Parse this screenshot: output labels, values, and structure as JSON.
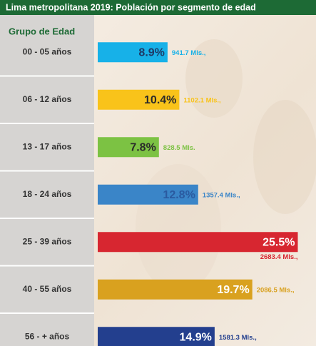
{
  "chart_data": {
    "type": "bar",
    "orientation": "horizontal",
    "title": "Lima metropolitana 2019: Población por segmento de edad",
    "category_header": "Grupo de Edad",
    "categories": [
      "00 - 05 años",
      "06 - 12 años",
      "13 - 17 años",
      "18 - 24 años",
      "25 - 39 años",
      "40 - 55 años",
      "56 - + años"
    ],
    "values": [
      8.9,
      10.4,
      7.8,
      12.8,
      25.5,
      19.7,
      14.9
    ],
    "value_labels": [
      "8.9%",
      "10.4%",
      "7.8%",
      "12.8%",
      "25.5%",
      "19.7%",
      "14.9%"
    ],
    "population_labels": [
      "941.7 Mls.,",
      "1102.1 Mls.,",
      "828.5 Mls.",
      "1357.4 Mls.,",
      "2683.4 Mls.,",
      "2086.5 Mls.,",
      "1581.3 Mls.,"
    ],
    "colors": [
      "#17b1e8",
      "#f9c31a",
      "#7cc243",
      "#3a85c8",
      "#d72630",
      "#d9a11f",
      "#233f8e"
    ]
  }
}
